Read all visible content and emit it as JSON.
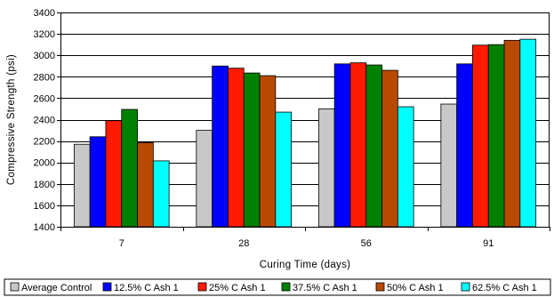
{
  "chart_data": {
    "type": "bar",
    "xlabel": "Curing Time (days)",
    "ylabel": "Compressive Strength (psi)",
    "categories": [
      "7",
      "28",
      "56",
      "91"
    ],
    "ylim": [
      1400,
      3400
    ],
    "yticks": [
      1400,
      1600,
      1800,
      2000,
      2200,
      2400,
      2600,
      2800,
      3000,
      3200,
      3400
    ],
    "grid": true,
    "legend_position": "bottom",
    "series": [
      {
        "name": "Average Control",
        "color": "#c8c8c8",
        "values": [
          2170,
          2300,
          2500,
          2545
        ]
      },
      {
        "name": "12.5% C Ash 1",
        "color": "#0000ff",
        "values": [
          2240,
          2900,
          2920,
          2920
        ]
      },
      {
        "name": "25% C Ash 1",
        "color": "#ff1a00",
        "values": [
          2390,
          2880,
          2930,
          3095
        ]
      },
      {
        "name": "37.5% C Ash 1",
        "color": "#008000",
        "values": [
          2495,
          2835,
          2910,
          3100
        ]
      },
      {
        "name": "50% C Ash 1",
        "color": "#b84a00",
        "values": [
          2185,
          2810,
          2860,
          3140
        ]
      },
      {
        "name": "62.5% C Ash 1",
        "color": "#00ffff",
        "values": [
          2015,
          2470,
          2520,
          3150
        ]
      }
    ]
  }
}
